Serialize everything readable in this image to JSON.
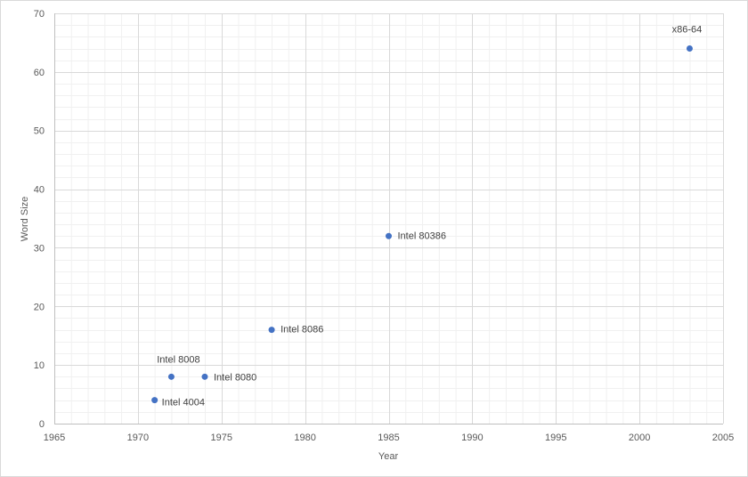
{
  "chart_data": {
    "type": "scatter",
    "title": "",
    "xlabel": "Year",
    "ylabel": "Word Size",
    "xlim": [
      1965,
      2005
    ],
    "ylim": [
      0,
      70
    ],
    "x_ticks": [
      "1965",
      "1970",
      "1975",
      "1980",
      "1985",
      "1990",
      "1995",
      "2000",
      "2005"
    ],
    "y_ticks": [
      "0",
      "10",
      "20",
      "30",
      "40",
      "50",
      "60",
      "70"
    ],
    "grid": "major and minor",
    "legend": "none",
    "marker_color": "#4472c4",
    "points": [
      {
        "label": "Intel 4004",
        "x": 1971,
        "y": 4
      },
      {
        "label": "Intel 8008",
        "x": 1972,
        "y": 8
      },
      {
        "label": "Intel 8080",
        "x": 1974,
        "y": 8
      },
      {
        "label": "Intel 8086",
        "x": 1978,
        "y": 16
      },
      {
        "label": "Intel 80386",
        "x": 1985,
        "y": 32
      },
      {
        "label": "x86-64",
        "x": 2003,
        "y": 64
      }
    ]
  }
}
